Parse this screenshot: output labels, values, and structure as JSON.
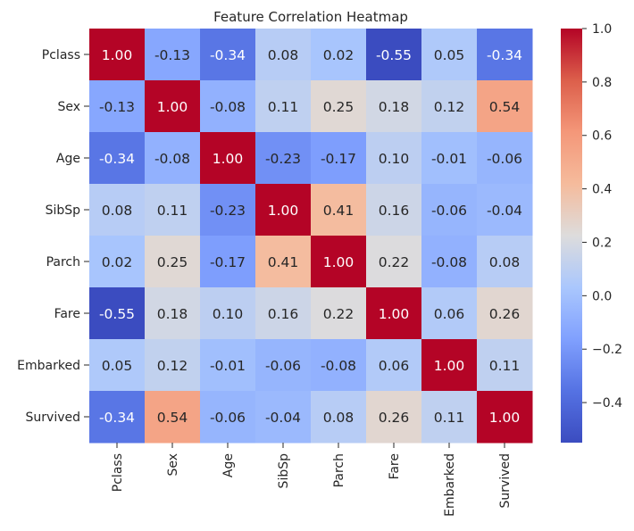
{
  "chart_data": {
    "type": "heatmap",
    "title": "Feature Correlation Heatmap",
    "xlabel": "",
    "ylabel": "",
    "rows": [
      "Pclass",
      "Sex",
      "Age",
      "SibSp",
      "Parch",
      "Fare",
      "Embarked",
      "Survived"
    ],
    "columns": [
      "Pclass",
      "Sex",
      "Age",
      "SibSp",
      "Parch",
      "Fare",
      "Embarked",
      "Survived"
    ],
    "values": [
      [
        1.0,
        -0.13,
        -0.34,
        0.08,
        0.02,
        -0.55,
        0.05,
        -0.34
      ],
      [
        -0.13,
        1.0,
        -0.08,
        0.11,
        0.25,
        0.18,
        0.12,
        0.54
      ],
      [
        -0.34,
        -0.08,
        1.0,
        -0.23,
        -0.17,
        0.1,
        -0.01,
        -0.06
      ],
      [
        0.08,
        0.11,
        -0.23,
        1.0,
        0.41,
        0.16,
        -0.06,
        -0.04
      ],
      [
        0.02,
        0.25,
        -0.17,
        0.41,
        1.0,
        0.22,
        -0.08,
        0.08
      ],
      [
        -0.55,
        0.18,
        0.1,
        0.16,
        0.22,
        1.0,
        0.06,
        0.26
      ],
      [
        0.05,
        0.12,
        -0.01,
        -0.06,
        -0.08,
        0.06,
        1.0,
        0.11
      ],
      [
        -0.34,
        0.54,
        -0.06,
        -0.04,
        0.08,
        0.26,
        0.11,
        1.0
      ]
    ],
    "annotation_format": "0.00",
    "colormap": "coolwarm",
    "vmin": -0.55,
    "vmax": 1.0,
    "colorbar_ticks": [
      -0.4,
      -0.2,
      0.0,
      0.2,
      0.4,
      0.6,
      0.8,
      1.0
    ],
    "colorbar_tick_labels": [
      "−0.4",
      "−0.2",
      "0.0",
      "0.2",
      "0.4",
      "0.6",
      "0.8",
      "1.0"
    ],
    "colors": {
      "low": "#3b4cc0",
      "mid": "#dddcdc",
      "high": "#b40426",
      "text_dark": "#262626",
      "text_light": "#ffffff"
    }
  }
}
